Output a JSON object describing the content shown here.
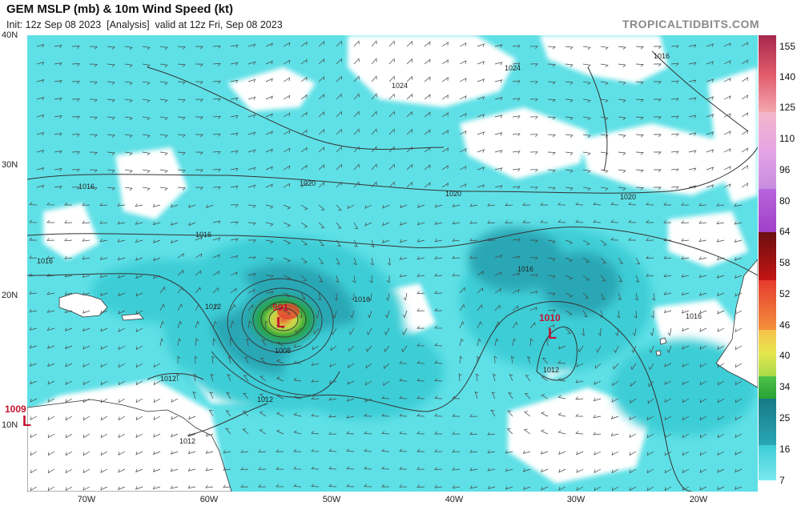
{
  "header": {
    "title": "GEM MSLP (mb) & 10m Wind Speed (kt)",
    "subtitle": "Init: 12z Sep 08 2023  [Analysis]  valid at 12z Fri, Sep 08 2023",
    "brand": "TROPICALTIDBITS.COM"
  },
  "axes": {
    "lat_labels": [
      "40N",
      "30N",
      "20N",
      "10N"
    ],
    "lon_labels": [
      "70W",
      "60W",
      "50W",
      "40W",
      "30W",
      "20W"
    ]
  },
  "colorbar": {
    "labels": [
      "155",
      "140",
      "125",
      "110",
      "96",
      "80",
      "64",
      "58",
      "52",
      "46",
      "40",
      "34",
      "25",
      "16",
      "7"
    ],
    "colors": {
      "calm": "#ffffff",
      "light": "#5fe0e6",
      "moderate": "#3ecdd6",
      "fresh": "#2aa7b5",
      "strong": "#1f8a99",
      "gale": "#26a336",
      "storm": "#d8e84a",
      "hurricane": "#e53b2e"
    }
  },
  "lows": [
    {
      "value": "991",
      "symbol": "L",
      "lat": 18.6,
      "lon": -54.3
    },
    {
      "value": "1010",
      "symbol": "L",
      "lat": 17.3,
      "lon": -32.3
    },
    {
      "value": "1009",
      "symbol": "L",
      "lat": 10.1,
      "lon": -74.2
    }
  ],
  "isobar_labels": [
    "1024",
    "1024",
    "1020",
    "1020",
    "1020",
    "1016",
    "1016",
    "1016",
    "1016",
    "1016",
    "1016",
    "1016",
    "1012",
    "1012",
    "1012",
    "1012",
    "1012",
    "1008"
  ]
}
